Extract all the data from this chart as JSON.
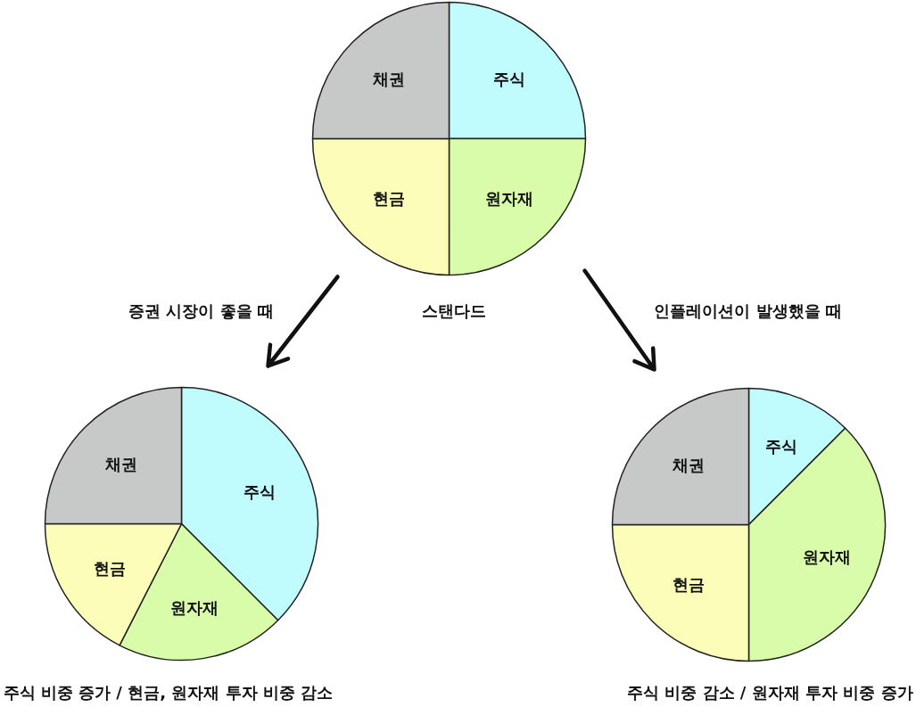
{
  "chart_data": [
    {
      "type": "pie",
      "title": "스탠다드",
      "categories": [
        "주식",
        "원자재",
        "현금",
        "채권"
      ],
      "values": [
        25,
        25,
        25,
        25
      ],
      "colors": [
        "#c0fbfd",
        "#d9fcaa",
        "#fbfdb8",
        "#c7c9c9"
      ]
    },
    {
      "type": "pie",
      "title": "증권 시장이 좋을 때",
      "subtitle": "주식 비중 증가 / 현금, 원자재 투자 비중 감소",
      "categories": [
        "주식",
        "원자재",
        "현금",
        "채권"
      ],
      "values": [
        37.5,
        20,
        17.5,
        25
      ],
      "colors": [
        "#c0fbfd",
        "#d9fcaa",
        "#fbfdb8",
        "#c7c9c9"
      ]
    },
    {
      "type": "pie",
      "title": "인플레이션이 발생했을 때",
      "subtitle": "주식 비중 감소 / 원자재 투자 비중 증가",
      "categories": [
        "주식",
        "원자재",
        "현금",
        "채권"
      ],
      "values": [
        12.5,
        37.5,
        25,
        25
      ],
      "colors": [
        "#c0fbfd",
        "#d9fcaa",
        "#fbfdb8",
        "#c7c9c9"
      ]
    }
  ]
}
